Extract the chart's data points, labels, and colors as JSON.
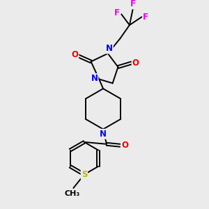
{
  "background_color": "#ebebeb",
  "atom_colors": {
    "C": "#000000",
    "N": "#0000ee",
    "O": "#ee0000",
    "F": "#ee00ee",
    "S": "#bbbb00"
  },
  "bond_color": "#000000",
  "bond_width": 1.4,
  "font_size_atom": 8.5
}
